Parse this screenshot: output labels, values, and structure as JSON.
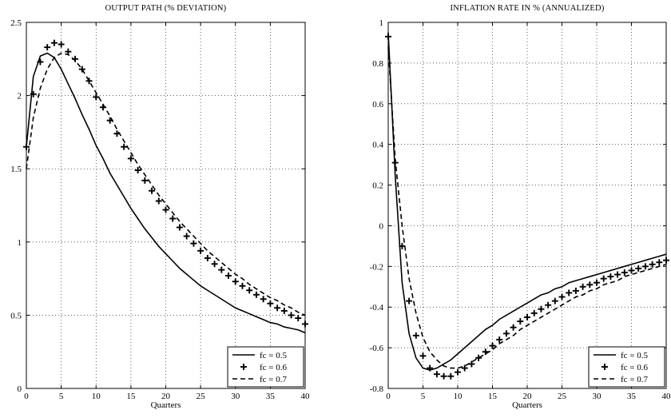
{
  "chart_data": [
    {
      "type": "line",
      "title": "OUTPUT PATH (% DEVIATION)",
      "xlabel": "Quarters",
      "ylabel": "",
      "xlim": [
        0,
        40
      ],
      "ylim": [
        0,
        2.5
      ],
      "xticks": [
        0,
        5,
        10,
        15,
        20,
        25,
        30,
        35,
        40
      ],
      "xtick_labels": [
        "0",
        "5",
        "10",
        "15",
        "20",
        "25",
        "30",
        "35",
        "40"
      ],
      "yticks": [
        0,
        0.5,
        1,
        1.5,
        2,
        2.5
      ],
      "ytick_labels": [
        "0",
        "0.5",
        "1",
        "1.5",
        "2",
        "2.5"
      ],
      "grid": true,
      "legend_position": "bottom-right",
      "series": [
        {
          "name": "fc = 0.5",
          "style": "solid",
          "x": [
            0,
            1,
            2,
            3,
            4,
            5,
            6,
            7,
            8,
            9,
            10,
            11,
            12,
            13,
            14,
            15,
            16,
            17,
            18,
            19,
            20,
            21,
            22,
            23,
            24,
            25,
            26,
            27,
            28,
            29,
            30,
            31,
            32,
            33,
            34,
            35,
            36,
            37,
            38,
            39,
            40
          ],
          "y": [
            1.65,
            2.13,
            2.27,
            2.29,
            2.26,
            2.18,
            2.08,
            1.98,
            1.87,
            1.77,
            1.66,
            1.57,
            1.47,
            1.39,
            1.31,
            1.23,
            1.16,
            1.09,
            1.03,
            0.97,
            0.92,
            0.87,
            0.82,
            0.78,
            0.74,
            0.7,
            0.67,
            0.64,
            0.61,
            0.58,
            0.55,
            0.53,
            0.51,
            0.49,
            0.47,
            0.45,
            0.44,
            0.42,
            0.41,
            0.4,
            0.38
          ]
        },
        {
          "name": "fc = 0.6",
          "style": "plus",
          "x": [
            0,
            1,
            2,
            3,
            4,
            5,
            6,
            7,
            8,
            9,
            10,
            11,
            12,
            13,
            14,
            15,
            16,
            17,
            18,
            19,
            20,
            21,
            22,
            23,
            24,
            25,
            26,
            27,
            28,
            29,
            30,
            31,
            32,
            33,
            34,
            35,
            36,
            37,
            38,
            39,
            40
          ],
          "y": [
            1.65,
            2.01,
            2.23,
            2.33,
            2.36,
            2.35,
            2.3,
            2.25,
            2.18,
            2.1,
            1.99,
            1.92,
            1.83,
            1.74,
            1.65,
            1.57,
            1.49,
            1.42,
            1.35,
            1.28,
            1.22,
            1.16,
            1.1,
            1.04,
            0.99,
            0.94,
            0.89,
            0.85,
            0.81,
            0.77,
            0.73,
            0.7,
            0.67,
            0.64,
            0.61,
            0.58,
            0.55,
            0.53,
            0.5,
            0.48,
            0.44
          ]
        },
        {
          "name": "fc = 0.7",
          "style": "dashed",
          "x": [
            0,
            1,
            2,
            3,
            4,
            5,
            6,
            7,
            8,
            9,
            10,
            11,
            12,
            13,
            14,
            15,
            16,
            17,
            18,
            19,
            20,
            21,
            22,
            23,
            24,
            25,
            26,
            27,
            28,
            29,
            30,
            31,
            32,
            33,
            34,
            35,
            36,
            37,
            38,
            39,
            40
          ],
          "y": [
            1.5,
            1.85,
            2.05,
            2.18,
            2.26,
            2.29,
            2.28,
            2.24,
            2.18,
            2.1,
            2.02,
            1.94,
            1.86,
            1.77,
            1.69,
            1.61,
            1.53,
            1.46,
            1.39,
            1.32,
            1.26,
            1.2,
            1.14,
            1.09,
            1.04,
            0.99,
            0.94,
            0.9,
            0.86,
            0.82,
            0.78,
            0.75,
            0.71,
            0.68,
            0.65,
            0.62,
            0.6,
            0.57,
            0.55,
            0.52,
            0.5
          ]
        }
      ]
    },
    {
      "type": "line",
      "title": "INFLATION RATE IN % (ANNUALIZED)",
      "xlabel": "Quarters",
      "ylabel": "",
      "xlim": [
        0,
        40
      ],
      "ylim": [
        -0.8,
        1
      ],
      "xticks": [
        0,
        5,
        10,
        15,
        20,
        25,
        30,
        35,
        40
      ],
      "xtick_labels": [
        "0",
        "5",
        "10",
        "15",
        "20",
        "25",
        "30",
        "35",
        "40"
      ],
      "yticks": [
        -0.8,
        -0.6,
        -0.4,
        -0.2,
        0,
        0.2,
        0.4,
        0.6,
        0.8,
        1
      ],
      "ytick_labels": [
        "-0.8",
        "-0.6",
        "-0.4",
        "-0.2",
        "0",
        "0.2",
        "0.4",
        "0.6",
        "0.8",
        "1"
      ],
      "grid": true,
      "legend_position": "bottom-right",
      "series": [
        {
          "name": "fc = 0.5",
          "style": "solid",
          "x": [
            0,
            1,
            2,
            3,
            4,
            5,
            6,
            7,
            8,
            9,
            10,
            11,
            12,
            13,
            14,
            15,
            16,
            17,
            18,
            19,
            20,
            21,
            22,
            23,
            24,
            25,
            26,
            27,
            28,
            29,
            30,
            31,
            32,
            33,
            34,
            35,
            36,
            37,
            38,
            39,
            40
          ],
          "y": [
            0.95,
            0.25,
            -0.28,
            -0.53,
            -0.65,
            -0.7,
            -0.71,
            -0.7,
            -0.68,
            -0.66,
            -0.63,
            -0.6,
            -0.57,
            -0.54,
            -0.51,
            -0.49,
            -0.46,
            -0.44,
            -0.42,
            -0.4,
            -0.38,
            -0.36,
            -0.34,
            -0.33,
            -0.31,
            -0.3,
            -0.28,
            -0.27,
            -0.26,
            -0.25,
            -0.24,
            -0.23,
            -0.22,
            -0.21,
            -0.2,
            -0.19,
            -0.18,
            -0.17,
            -0.16,
            -0.15,
            -0.14
          ]
        },
        {
          "name": "fc = 0.6",
          "style": "plus",
          "x": [
            0,
            1,
            2,
            3,
            4,
            5,
            6,
            7,
            8,
            9,
            10,
            11,
            12,
            13,
            14,
            15,
            16,
            17,
            18,
            19,
            20,
            21,
            22,
            23,
            24,
            25,
            26,
            27,
            28,
            29,
            30,
            31,
            32,
            33,
            34,
            35,
            36,
            37,
            38,
            39,
            40
          ],
          "y": [
            0.93,
            0.31,
            -0.1,
            -0.37,
            -0.54,
            -0.64,
            -0.7,
            -0.73,
            -0.74,
            -0.74,
            -0.72,
            -0.7,
            -0.68,
            -0.65,
            -0.62,
            -0.59,
            -0.56,
            -0.53,
            -0.5,
            -0.47,
            -0.45,
            -0.43,
            -0.41,
            -0.39,
            -0.37,
            -0.35,
            -0.33,
            -0.32,
            -0.3,
            -0.29,
            -0.28,
            -0.26,
            -0.25,
            -0.24,
            -0.23,
            -0.22,
            -0.21,
            -0.2,
            -0.19,
            -0.18,
            -0.17
          ]
        },
        {
          "name": "fc = 0.7",
          "style": "dashed",
          "x": [
            0,
            1,
            2,
            3,
            4,
            5,
            6,
            7,
            8,
            9,
            10,
            11,
            12,
            13,
            14,
            15,
            16,
            17,
            18,
            19,
            20,
            21,
            22,
            23,
            24,
            25,
            26,
            27,
            28,
            29,
            30,
            31,
            32,
            33,
            34,
            35,
            36,
            37,
            38,
            39,
            40
          ],
          "y": [
            0.88,
            0.33,
            0.0,
            -0.26,
            -0.43,
            -0.55,
            -0.62,
            -0.66,
            -0.69,
            -0.7,
            -0.7,
            -0.69,
            -0.67,
            -0.65,
            -0.63,
            -0.61,
            -0.58,
            -0.56,
            -0.54,
            -0.51,
            -0.49,
            -0.47,
            -0.45,
            -0.43,
            -0.41,
            -0.39,
            -0.37,
            -0.35,
            -0.34,
            -0.32,
            -0.31,
            -0.29,
            -0.28,
            -0.27,
            -0.25,
            -0.24,
            -0.23,
            -0.22,
            -0.21,
            -0.2,
            -0.19
          ]
        }
      ]
    }
  ]
}
